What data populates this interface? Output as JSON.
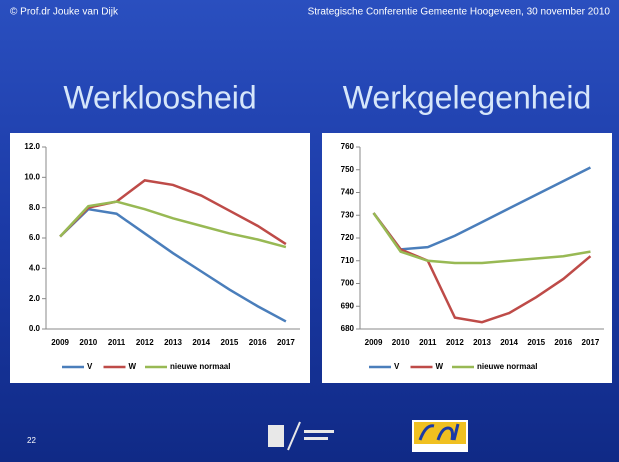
{
  "slide": {
    "author": "© Prof.dr Jouke van Dijk",
    "event": "Strategische Conferentie Gemeente Hoogeveen, 30 november 2010",
    "page": "22"
  },
  "chart_data": [
    {
      "type": "line",
      "title": "Werkloosheid",
      "categories": [
        "2009",
        "2010",
        "2011",
        "2012",
        "2013",
        "2014",
        "2015",
        "2016",
        "2017"
      ],
      "series": [
        {
          "name": "V",
          "color": "#4a7ebb",
          "values": [
            6.1,
            7.9,
            7.6,
            6.3,
            5.0,
            3.8,
            2.6,
            1.5,
            0.5
          ]
        },
        {
          "name": "W",
          "color": "#be4b48",
          "values": [
            6.1,
            8.0,
            8.4,
            9.8,
            9.5,
            8.8,
            7.8,
            6.8,
            5.6
          ]
        },
        {
          "name": "nieuwe normaal",
          "color": "#98b954",
          "values": [
            6.1,
            8.1,
            8.4,
            7.9,
            7.3,
            6.8,
            6.3,
            5.9,
            5.4
          ]
        }
      ],
      "ylim": [
        0,
        12
      ],
      "yticks": [
        {
          "value": 0,
          "label": "0.0"
        },
        {
          "value": 2,
          "label": "2.0"
        },
        {
          "value": 4,
          "label": "4.0"
        },
        {
          "value": 6,
          "label": "6.0"
        },
        {
          "value": 8,
          "label": "8.0"
        },
        {
          "value": 10,
          "label": "10.0"
        },
        {
          "value": 12,
          "label": "12.0"
        }
      ],
      "legend": "bottom"
    },
    {
      "type": "line",
      "title": "Werkgelegenheid",
      "categories": [
        "2009",
        "2010",
        "2011",
        "2012",
        "2013",
        "2014",
        "2015",
        "2016",
        "2017"
      ],
      "series": [
        {
          "name": "V",
          "color": "#4a7ebb",
          "values": [
            731,
            715,
            716,
            721,
            727,
            733,
            739,
            745,
            751
          ]
        },
        {
          "name": "W",
          "color": "#be4b48",
          "values": [
            731,
            715,
            710,
            685,
            683,
            687,
            694,
            702,
            712
          ]
        },
        {
          "name": "nieuwe normaal",
          "color": "#98b954",
          "values": [
            731,
            714,
            710,
            709,
            709,
            710,
            711,
            712,
            714
          ]
        }
      ],
      "ylim": [
        680,
        760
      ],
      "yticks": [
        680,
        690,
        700,
        710,
        720,
        730,
        740,
        750,
        760
      ],
      "legend": "bottom"
    }
  ]
}
